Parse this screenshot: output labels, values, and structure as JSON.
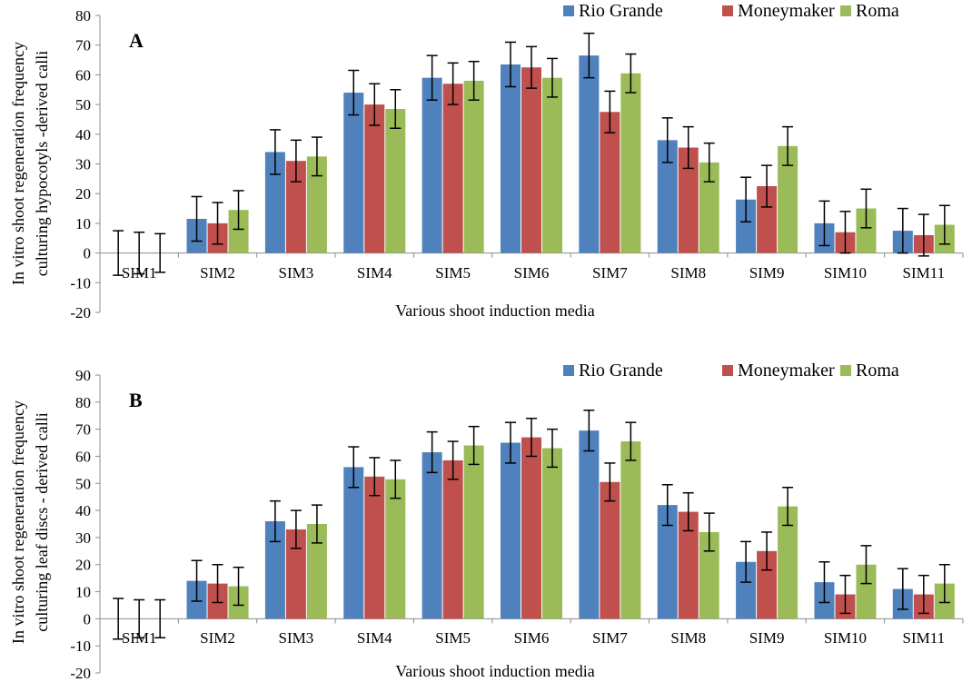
{
  "chart_data": [
    {
      "type": "bar",
      "panel_label": "A",
      "categories": [
        "SIM1",
        "SIM2",
        "SIM3",
        "SIM4",
        "SIM5",
        "SIM6",
        "SIM7",
        "SIM8",
        "SIM9",
        "SIM10",
        "SIM11"
      ],
      "series": [
        {
          "name": "Rio Grande",
          "color": "#4F81BD",
          "values": [
            0,
            11.5,
            34,
            54,
            59,
            63.5,
            66.5,
            38,
            18,
            10,
            7.5
          ],
          "errors": [
            7.5,
            7.5,
            7.5,
            7.5,
            7.5,
            7.5,
            7.5,
            7.5,
            7.5,
            7.5,
            7.5
          ]
        },
        {
          "name": "Moneymaker",
          "color": "#C0504D",
          "values": [
            0,
            10,
            31,
            50,
            57,
            62.5,
            47.5,
            35.5,
            22.5,
            7,
            6
          ],
          "errors": [
            7,
            7,
            7,
            7,
            7,
            7,
            7,
            7,
            7,
            7,
            7
          ]
        },
        {
          "name": "Roma",
          "color": "#9BBB59",
          "values": [
            0,
            14.5,
            32.5,
            48.5,
            58,
            59,
            60.5,
            30.5,
            36,
            15,
            9.5
          ],
          "errors": [
            6.5,
            6.5,
            6.5,
            6.5,
            6.5,
            6.5,
            6.5,
            6.5,
            6.5,
            6.5,
            6.5
          ]
        }
      ],
      "ylabel_lines": [
        "In vitro shoot regeneration frequency",
        "culturing hypocotyls -derived calli"
      ],
      "xlabel": "Various shoot induction media",
      "ylim": [
        -20,
        80
      ],
      "yticks": [
        80,
        70,
        60,
        50,
        40,
        30,
        20,
        10,
        0,
        -10,
        -20
      ],
      "grid": false,
      "legend_position": "top-right"
    },
    {
      "type": "bar",
      "panel_label": "B",
      "categories": [
        "SIM1",
        "SIM2",
        "SIM3",
        "SIM4",
        "SIM5",
        "SIM6",
        "SIM7",
        "SIM8",
        "SIM9",
        "SIM10",
        "SIM11"
      ],
      "series": [
        {
          "name": "Rio Grande",
          "color": "#4F81BD",
          "values": [
            0,
            14,
            36,
            56,
            61.5,
            65,
            69.5,
            42,
            21,
            13.5,
            11
          ],
          "errors": [
            7.5,
            7.5,
            7.5,
            7.5,
            7.5,
            7.5,
            7.5,
            7.5,
            7.5,
            7.5,
            7.5
          ]
        },
        {
          "name": "Moneymaker",
          "color": "#C0504D",
          "values": [
            0,
            13,
            33,
            52.5,
            58.5,
            67,
            50.5,
            39.5,
            25,
            9,
            9
          ],
          "errors": [
            7,
            7,
            7,
            7,
            7,
            7,
            7,
            7,
            7,
            7,
            7
          ]
        },
        {
          "name": "Roma",
          "color": "#9BBB59",
          "values": [
            0,
            12,
            35,
            51.5,
            64,
            63,
            65.5,
            32,
            41.5,
            20,
            13
          ],
          "errors": [
            7,
            7,
            7,
            7,
            7,
            7,
            7,
            7,
            7,
            7,
            7
          ]
        }
      ],
      "ylabel_lines": [
        "In vitro shoot regeneration frequency",
        "culturing leaf discs - derived calli"
      ],
      "xlabel": "Various shoot induction media",
      "ylim": [
        -20,
        90
      ],
      "yticks": [
        90,
        80,
        70,
        60,
        50,
        40,
        30,
        20,
        10,
        0,
        -10,
        -20
      ],
      "grid": false,
      "legend_position": "top-right"
    }
  ]
}
